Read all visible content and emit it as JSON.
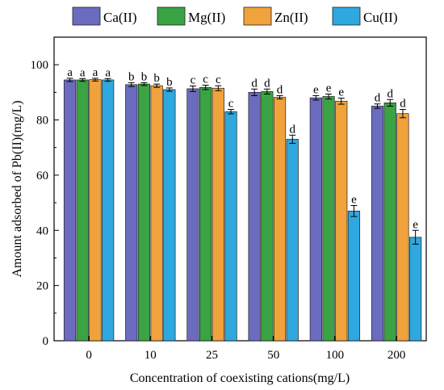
{
  "chart_data": {
    "type": "bar",
    "xlabel": "Concentration of coexisting cations(mg/L)",
    "ylabel": "Amount adsorbed of Pb(II)(mg/L)",
    "categories": [
      "0",
      "10",
      "25",
      "50",
      "100",
      "200"
    ],
    "ylim": [
      0,
      110
    ],
    "yticks": [
      0,
      20,
      40,
      60,
      80,
      100
    ],
    "grid": false,
    "legend_position": "top",
    "series": [
      {
        "name": "Ca(II)",
        "color": "#6b6bbf",
        "values": [
          94.5,
          92.8,
          91.3,
          90.0,
          88.0,
          85.0
        ],
        "errors": [
          0.6,
          0.7,
          1.0,
          1.2,
          0.8,
          0.8
        ],
        "letters": [
          "a",
          "b",
          "c",
          "d",
          "e",
          "d"
        ]
      },
      {
        "name": "Mg(II)",
        "color": "#3aa343",
        "values": [
          94.5,
          93.0,
          91.8,
          90.3,
          88.5,
          86.2
        ],
        "errors": [
          0.5,
          0.5,
          0.8,
          0.9,
          0.9,
          1.2
        ],
        "letters": [
          "a",
          "b",
          "c",
          "d",
          "e",
          "d"
        ]
      },
      {
        "name": "Zn(II)",
        "color": "#f0a23c",
        "values": [
          94.6,
          92.4,
          91.5,
          88.2,
          86.8,
          82.3
        ],
        "errors": [
          0.5,
          0.6,
          0.9,
          0.6,
          1.1,
          1.5
        ],
        "letters": [
          "a",
          "b",
          "c",
          "d",
          "e",
          "d"
        ]
      },
      {
        "name": "Cu(II)",
        "color": "#2ea8de",
        "values": [
          94.5,
          91.0,
          83.0,
          73.0,
          47.0,
          37.5
        ],
        "errors": [
          0.5,
          0.6,
          0.8,
          1.5,
          2.0,
          2.5
        ],
        "letters": [
          "a",
          "b",
          "c",
          "d",
          "e",
          "e"
        ]
      }
    ]
  }
}
